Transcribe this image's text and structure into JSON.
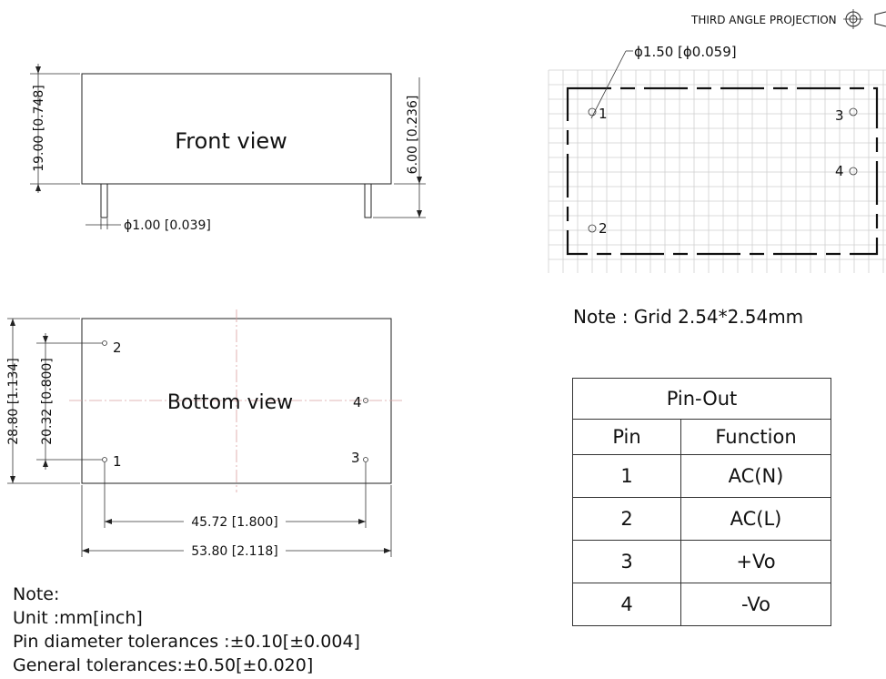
{
  "projection": "THIRD ANGLE PROJECTION",
  "front_view": {
    "title": "Front view",
    "height_dim": "19.00 [0.748]",
    "pin_length_dim": "6.00 [0.236]",
    "pin_diameter_dim": "ϕ1.00 [0.039]"
  },
  "bottom_view": {
    "title": "Bottom view",
    "width_dim": "28.80 [1.134]",
    "pin_span_v_dim": "20.32 [0.800]",
    "pin_span_h_dim": "45.72 [1.800]",
    "length_dim": "53.80 [2.118]",
    "pins": [
      "1",
      "2",
      "3",
      "4"
    ]
  },
  "pcb_layout": {
    "hole_dim": "ϕ1.50 [ϕ0.059]",
    "pins": [
      "1",
      "2",
      "3",
      "4"
    ],
    "grid_note": "Note : Grid 2.54*2.54mm"
  },
  "pin_out": {
    "title": "Pin-Out",
    "headers": [
      "Pin",
      "Function"
    ],
    "rows": [
      {
        "pin": "1",
        "function": "AC(N)"
      },
      {
        "pin": "2",
        "function": "AC(L)"
      },
      {
        "pin": "3",
        "function": "+Vo"
      },
      {
        "pin": "4",
        "function": "-Vo"
      }
    ]
  },
  "notes": [
    "Note:",
    "Unit :mm[inch]",
    "Pin diameter tolerances :±0.10[±0.004]",
    "General tolerances:±0.50[±0.020]"
  ]
}
